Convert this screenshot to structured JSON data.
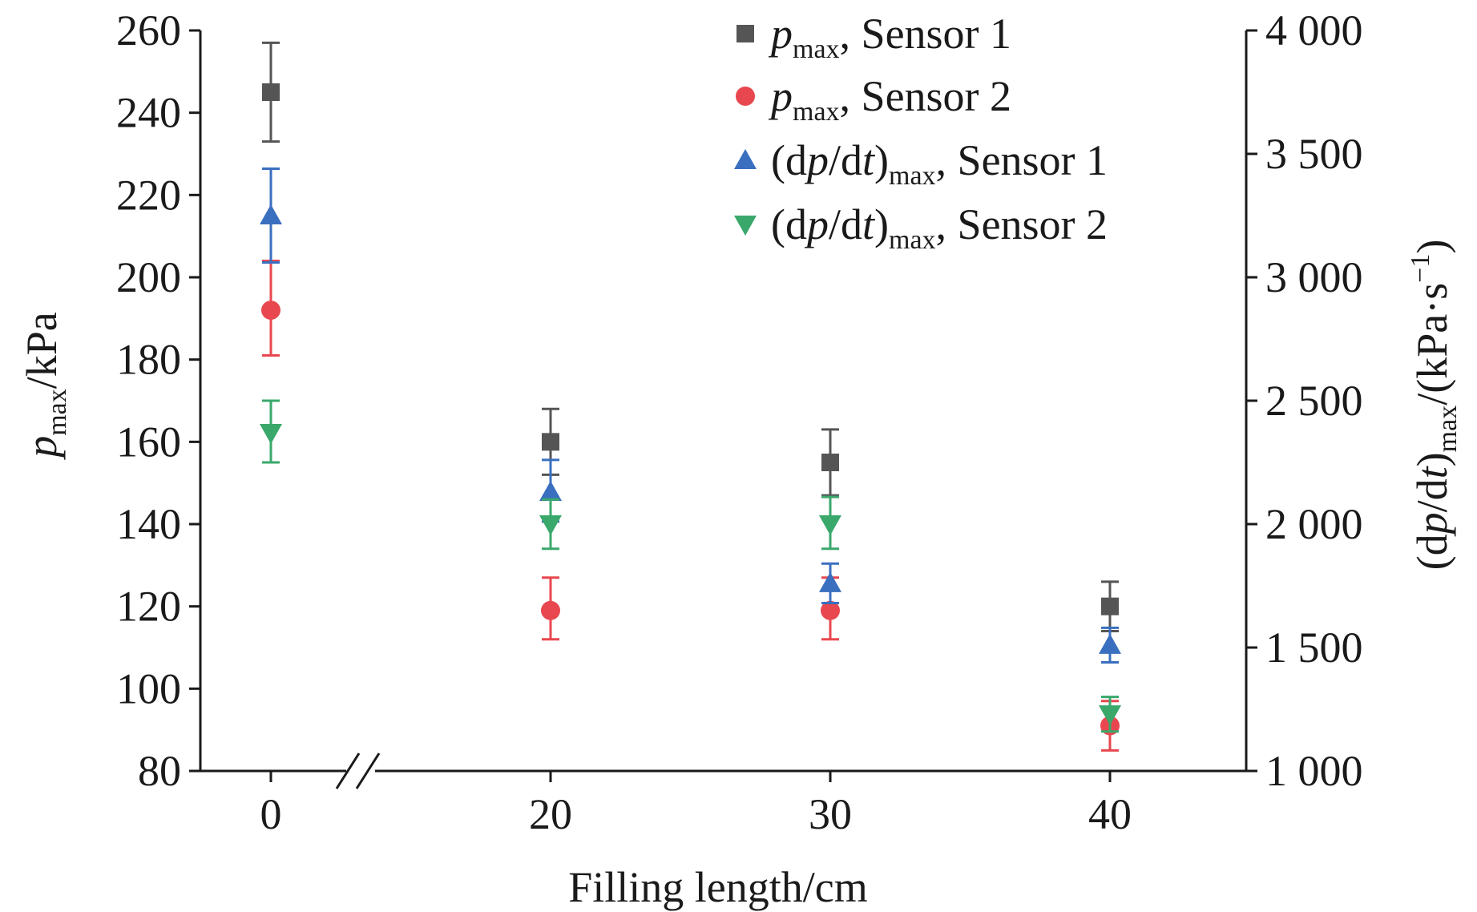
{
  "chart_data": {
    "type": "scatter",
    "xlabel": "Filling length/cm",
    "ylabel": {
      "var": "p",
      "sub": "max",
      "unit": "/kPa"
    },
    "y2label": {
      "pre": "(d",
      "var1": "p",
      "mid": "/d",
      "var2": "t",
      "post": ")",
      "sub": "max",
      "unit_pre": "/(kPa·s",
      "unit_sup": "−1",
      "unit_post": ")"
    },
    "categories": [
      "0",
      "20",
      "30",
      "40"
    ],
    "x_break_after": "0",
    "ylim": [
      80,
      260
    ],
    "yticks": [
      "80",
      "100",
      "120",
      "140",
      "160",
      "180",
      "200",
      "220",
      "240",
      "260"
    ],
    "y2lim": [
      1000,
      4000
    ],
    "y2ticks": [
      "1 000",
      "1 500",
      "2 000",
      "2 500",
      "3 000",
      "3 500",
      "4 000"
    ],
    "legend_position": "top-right",
    "series": [
      {
        "name_var": "p",
        "name_sub": "max",
        "name_rest": ", Sensor 1",
        "axis": "left",
        "marker": "square",
        "color": "#555555",
        "values": [
          245,
          160,
          155,
          120
        ],
        "err_high": [
          257,
          168,
          163,
          126
        ],
        "err_low": [
          233,
          152,
          147,
          114
        ]
      },
      {
        "name_var": "p",
        "name_sub": "max",
        "name_rest": ", Sensor 2",
        "axis": "left",
        "marker": "circle",
        "color": "#e8474f",
        "values": [
          192,
          119,
          119,
          91
        ],
        "err_high": [
          204,
          127,
          127,
          97
        ],
        "err_low": [
          181,
          112,
          112,
          85
        ]
      },
      {
        "name_pre": "(d",
        "name_var": "p",
        "name_mid": "/d",
        "name_var2": "t",
        "name_post": ")",
        "name_sub": "max",
        "name_rest": ", Sensor 1",
        "axis": "right",
        "marker": "triangle-up",
        "color": "#3a6fbf",
        "values": [
          3250,
          2130,
          1760,
          1510
        ],
        "err_high": [
          3440,
          2260,
          1840,
          1580
        ],
        "err_low": [
          3060,
          2010,
          1680,
          1440
        ]
      },
      {
        "name_pre": "(d",
        "name_var": "p",
        "name_mid": "/d",
        "name_var2": "t",
        "name_post": ")",
        "name_sub": "max",
        "name_rest": ", Sensor 2",
        "axis": "right",
        "marker": "triangle-down",
        "color": "#3aa86b",
        "values": [
          2370,
          2000,
          2000,
          1230
        ],
        "err_high": [
          2500,
          2100,
          2110,
          1300
        ],
        "err_low": [
          2250,
          1900,
          1900,
          1160
        ]
      }
    ]
  }
}
